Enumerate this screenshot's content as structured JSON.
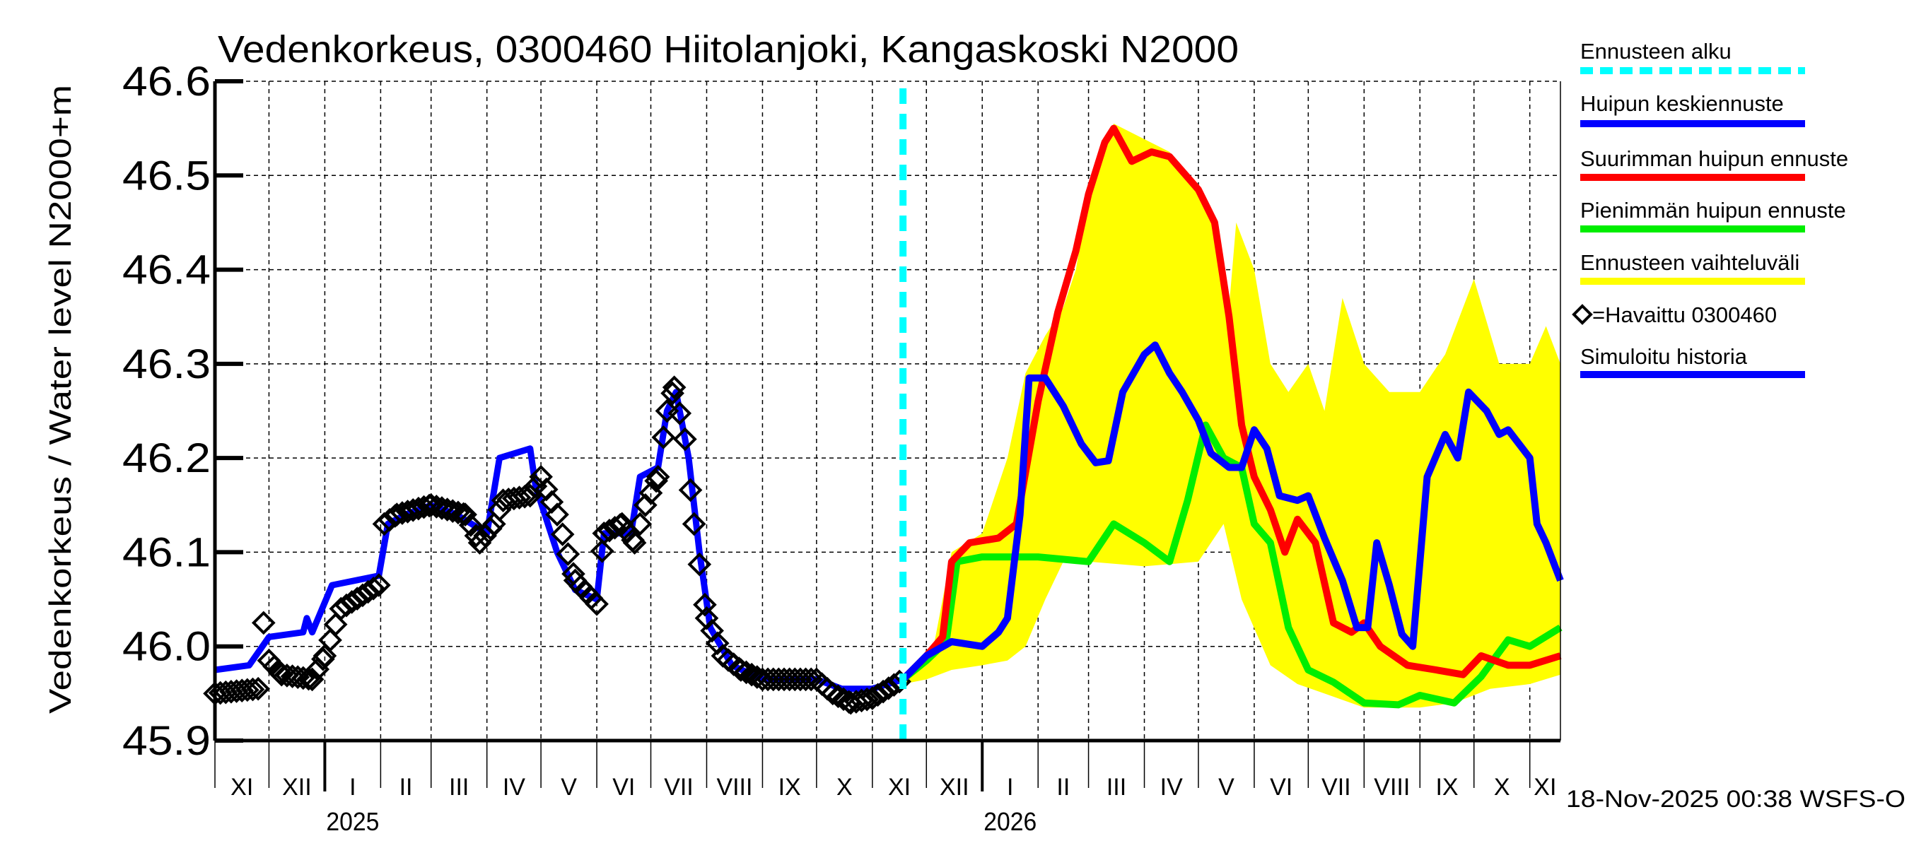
{
  "chart_data": {
    "type": "line",
    "title": "Vedenkorkeus, 0300460 Hiitolanjoki, Kangaskoski N2000",
    "ylabel": "Vedenkorkeus / Water level    N2000+m",
    "ylim": [
      45.9,
      46.6
    ],
    "yticks": [
      "45.9",
      "46.0",
      "46.1",
      "46.2",
      "46.3",
      "46.4",
      "46.5",
      "46.6"
    ],
    "xlim": [
      "2024-11-01",
      "2026-11-18"
    ],
    "month_labels": [
      "XI",
      "XII",
      "I",
      "II",
      "III",
      "IV",
      "V",
      "VI",
      "VII",
      "VIII",
      "IX",
      "X",
      "XI",
      "XII",
      "I",
      "II",
      "III",
      "IV",
      "V",
      "VI",
      "VII",
      "VIII",
      "IX",
      "X",
      "XI"
    ],
    "year_labels": [
      "2025",
      "2026"
    ],
    "grid": true,
    "legend_placement": "right-outside",
    "timestamp": "18-Nov-2025 00:38 WSFS-O",
    "forecast_start": "2025-11-18",
    "colors": {
      "forecast_start": "#00ffff",
      "median": "#0000ff",
      "max": "#ff0000",
      "min": "#00ee00",
      "range": "#ffff00",
      "observed": "#000000",
      "simulated": "#0000ff"
    },
    "legend": [
      {
        "key": "forecast_start",
        "label": "Ennusteen alku"
      },
      {
        "key": "median",
        "label": "Huipun keskiennuste"
      },
      {
        "key": "max",
        "label": "Suurimman huipun ennuste"
      },
      {
        "key": "min",
        "label": "Pienimmän huipun ennuste"
      },
      {
        "key": "range",
        "label": "Ennusteen vaihteluväli"
      },
      {
        "key": "observed",
        "label": "=Havaittu 0300460"
      },
      {
        "key": "simulated",
        "label": "Simuloitu historia"
      }
    ],
    "series": {
      "simulated": [
        [
          "2024-11-01",
          45.975
        ],
        [
          "2024-11-20",
          45.98
        ],
        [
          "2024-12-01",
          46.01
        ],
        [
          "2024-12-20",
          46.015
        ],
        [
          "2024-12-22",
          46.03
        ],
        [
          "2024-12-25",
          46.015
        ],
        [
          "2025-01-05",
          46.065
        ],
        [
          "2025-01-31",
          46.075
        ],
        [
          "2025-02-05",
          46.13
        ],
        [
          "2025-02-15",
          46.14
        ],
        [
          "2025-03-01",
          46.15
        ],
        [
          "2025-03-15",
          46.14
        ],
        [
          "2025-04-01",
          46.12
        ],
        [
          "2025-04-08",
          46.2
        ],
        [
          "2025-04-25",
          46.21
        ],
        [
          "2025-04-28",
          46.17
        ],
        [
          "2025-05-10",
          46.1
        ],
        [
          "2025-05-20",
          46.06
        ],
        [
          "2025-06-01",
          46.05
        ],
        [
          "2025-06-05",
          46.12
        ],
        [
          "2025-06-20",
          46.12
        ],
        [
          "2025-06-25",
          46.18
        ],
        [
          "2025-07-05",
          46.19
        ],
        [
          "2025-07-10",
          46.25
        ],
        [
          "2025-07-15",
          46.27
        ],
        [
          "2025-07-22",
          46.2
        ],
        [
          "2025-07-28",
          46.1
        ],
        [
          "2025-08-03",
          46.02
        ],
        [
          "2025-08-15",
          45.98
        ],
        [
          "2025-09-01",
          45.965
        ],
        [
          "2025-10-01",
          45.965
        ],
        [
          "2025-10-15",
          45.955
        ],
        [
          "2025-11-01",
          45.955
        ],
        [
          "2025-11-18",
          45.965
        ]
      ],
      "observed": [
        [
          "2024-11-01",
          45.95
        ],
        [
          "2024-11-25",
          45.955
        ],
        [
          "2024-11-28",
          46.025
        ],
        [
          "2024-12-01",
          45.985
        ],
        [
          "2024-12-08",
          45.97
        ],
        [
          "2024-12-25",
          45.965
        ],
        [
          "2025-01-01",
          45.99
        ],
        [
          "2025-01-10",
          46.04
        ],
        [
          "2025-01-31",
          46.065
        ],
        [
          "2025-02-03",
          46.13
        ],
        [
          "2025-02-10",
          46.14
        ],
        [
          "2025-03-01",
          46.15
        ],
        [
          "2025-03-20",
          46.14
        ],
        [
          "2025-03-28",
          46.11
        ],
        [
          "2025-04-05",
          46.13
        ],
        [
          "2025-04-10",
          46.155
        ],
        [
          "2025-04-25",
          46.16
        ],
        [
          "2025-05-01",
          46.18
        ],
        [
          "2025-05-10",
          46.14
        ],
        [
          "2025-05-20",
          46.07
        ],
        [
          "2025-06-01",
          46.045
        ],
        [
          "2025-06-05",
          46.12
        ],
        [
          "2025-06-15",
          46.13
        ],
        [
          "2025-06-22",
          46.11
        ],
        [
          "2025-06-28",
          46.15
        ],
        [
          "2025-07-05",
          46.18
        ],
        [
          "2025-07-10",
          46.25
        ],
        [
          "2025-07-14",
          46.275
        ],
        [
          "2025-07-20",
          46.22
        ],
        [
          "2025-07-25",
          46.13
        ],
        [
          "2025-08-01",
          46.03
        ],
        [
          "2025-08-10",
          45.99
        ],
        [
          "2025-08-20",
          45.975
        ],
        [
          "2025-09-01",
          45.965
        ],
        [
          "2025-10-01",
          45.965
        ],
        [
          "2025-10-10",
          45.95
        ],
        [
          "2025-10-20",
          45.94
        ],
        [
          "2025-11-01",
          45.945
        ],
        [
          "2025-11-18",
          45.965
        ]
      ],
      "median": [
        [
          "2025-11-18",
          45.965
        ],
        [
          "2025-12-01",
          45.99
        ],
        [
          "2025-12-15",
          46.005
        ],
        [
          "2026-01-01",
          46.0
        ],
        [
          "2026-01-10",
          46.015
        ],
        [
          "2026-01-15",
          46.03
        ],
        [
          "2026-01-22",
          46.14
        ],
        [
          "2026-01-27",
          46.285
        ],
        [
          "2026-02-05",
          46.285
        ],
        [
          "2026-02-15",
          46.255
        ],
        [
          "2026-02-25",
          46.215
        ],
        [
          "2026-03-05",
          46.195
        ],
        [
          "2026-03-12",
          46.197
        ],
        [
          "2026-03-20",
          46.27
        ],
        [
          "2026-04-01",
          46.31
        ],
        [
          "2026-04-07",
          46.32
        ],
        [
          "2026-04-15",
          46.29
        ],
        [
          "2026-04-22",
          46.27
        ],
        [
          "2026-05-01",
          46.24
        ],
        [
          "2026-05-08",
          46.205
        ],
        [
          "2026-05-18",
          46.19
        ],
        [
          "2026-05-25",
          46.19
        ],
        [
          "2026-06-01",
          46.23
        ],
        [
          "2026-06-08",
          46.21
        ],
        [
          "2026-06-15",
          46.16
        ],
        [
          "2026-06-25",
          46.155
        ],
        [
          "2026-07-01",
          46.16
        ],
        [
          "2026-07-10",
          46.115
        ],
        [
          "2026-07-20",
          46.07
        ],
        [
          "2026-07-28",
          46.02
        ],
        [
          "2026-08-03",
          46.02
        ],
        [
          "2026-08-08",
          46.11
        ],
        [
          "2026-08-15",
          46.065
        ],
        [
          "2026-08-22",
          46.013
        ],
        [
          "2026-08-28",
          46.0
        ],
        [
          "2026-09-05",
          46.18
        ],
        [
          "2026-09-15",
          46.225
        ],
        [
          "2026-09-22",
          46.2
        ],
        [
          "2026-09-28",
          46.27
        ],
        [
          "2026-10-08",
          46.25
        ],
        [
          "2026-10-15",
          46.225
        ],
        [
          "2026-10-20",
          46.23
        ],
        [
          "2026-11-01",
          46.2
        ],
        [
          "2026-11-05",
          46.13
        ],
        [
          "2026-11-10",
          46.11
        ],
        [
          "2026-11-18",
          46.07
        ]
      ],
      "max": [
        [
          "2025-11-18",
          45.965
        ],
        [
          "2025-12-01",
          45.99
        ],
        [
          "2025-12-10",
          46.01
        ],
        [
          "2025-12-15",
          46.09
        ],
        [
          "2025-12-25",
          46.11
        ],
        [
          "2026-01-10",
          46.115
        ],
        [
          "2026-01-20",
          46.13
        ],
        [
          "2026-02-01",
          46.26
        ],
        [
          "2026-02-12",
          46.355
        ],
        [
          "2026-02-22",
          46.42
        ],
        [
          "2026-03-01",
          46.48
        ],
        [
          "2026-03-10",
          46.535
        ],
        [
          "2026-03-15",
          46.55
        ],
        [
          "2026-03-25",
          46.515
        ],
        [
          "2026-04-05",
          46.525
        ],
        [
          "2026-04-15",
          46.52
        ],
        [
          "2026-05-01",
          46.485
        ],
        [
          "2026-05-10",
          46.45
        ],
        [
          "2026-05-18",
          46.35
        ],
        [
          "2026-05-25",
          46.235
        ],
        [
          "2026-06-01",
          46.18
        ],
        [
          "2026-06-10",
          46.145
        ],
        [
          "2026-06-18",
          46.1
        ],
        [
          "2026-06-25",
          46.135
        ],
        [
          "2026-07-05",
          46.11
        ],
        [
          "2026-07-15",
          46.025
        ],
        [
          "2026-07-25",
          46.015
        ],
        [
          "2026-08-01",
          46.025
        ],
        [
          "2026-08-10",
          46.0
        ],
        [
          "2026-08-25",
          45.98
        ],
        [
          "2026-09-10",
          45.975
        ],
        [
          "2026-09-25",
          45.97
        ],
        [
          "2026-10-05",
          45.99
        ],
        [
          "2026-10-20",
          45.98
        ],
        [
          "2026-11-01",
          45.98
        ],
        [
          "2026-11-18",
          45.99
        ]
      ],
      "min": [
        [
          "2025-11-18",
          45.965
        ],
        [
          "2025-12-01",
          45.985
        ],
        [
          "2025-12-12",
          46.005
        ],
        [
          "2025-12-18",
          46.09
        ],
        [
          "2026-01-01",
          46.095
        ],
        [
          "2026-02-01",
          46.095
        ],
        [
          "2026-03-01",
          46.09
        ],
        [
          "2026-03-15",
          46.13
        ],
        [
          "2026-04-01",
          46.11
        ],
        [
          "2026-04-15",
          46.09
        ],
        [
          "2026-04-25",
          46.155
        ],
        [
          "2026-05-05",
          46.235
        ],
        [
          "2026-05-15",
          46.2
        ],
        [
          "2026-05-25",
          46.19
        ],
        [
          "2026-06-01",
          46.13
        ],
        [
          "2026-06-10",
          46.11
        ],
        [
          "2026-06-20",
          46.02
        ],
        [
          "2026-07-01",
          45.975
        ],
        [
          "2026-07-15",
          45.962
        ],
        [
          "2026-08-01",
          45.94
        ],
        [
          "2026-08-20",
          45.938
        ],
        [
          "2026-09-01",
          45.948
        ],
        [
          "2026-09-20",
          45.94
        ],
        [
          "2026-10-05",
          45.968
        ],
        [
          "2026-10-20",
          46.007
        ],
        [
          "2026-11-01",
          46.0
        ],
        [
          "2026-11-18",
          46.02
        ]
      ],
      "range_upper": [
        [
          "2025-11-18",
          45.97
        ],
        [
          "2025-12-05",
          46.0
        ],
        [
          "2025-12-15",
          46.1
        ],
        [
          "2026-01-01",
          46.12
        ],
        [
          "2026-01-15",
          46.2
        ],
        [
          "2026-01-25",
          46.29
        ],
        [
          "2026-02-05",
          46.33
        ],
        [
          "2026-02-15",
          46.36
        ],
        [
          "2026-02-22",
          46.4
        ],
        [
          "2026-03-01",
          46.48
        ],
        [
          "2026-03-15",
          46.555
        ],
        [
          "2026-04-15",
          46.525
        ],
        [
          "2026-05-10",
          46.455
        ],
        [
          "2026-05-18",
          46.36
        ],
        [
          "2026-05-22",
          46.45
        ],
        [
          "2026-06-01",
          46.4
        ],
        [
          "2026-06-10",
          46.3
        ],
        [
          "2026-06-20",
          46.27
        ],
        [
          "2026-07-01",
          46.3
        ],
        [
          "2026-07-10",
          46.25
        ],
        [
          "2026-07-20",
          46.37
        ],
        [
          "2026-08-01",
          46.3
        ],
        [
          "2026-08-15",
          46.27
        ],
        [
          "2026-09-01",
          46.27
        ],
        [
          "2026-09-15",
          46.31
        ],
        [
          "2026-10-01",
          46.39
        ],
        [
          "2026-10-15",
          46.3
        ],
        [
          "2026-11-01",
          46.3
        ],
        [
          "2026-11-10",
          46.34
        ],
        [
          "2026-11-18",
          46.3
        ]
      ],
      "range_lower": [
        [
          "2025-11-18",
          45.96
        ],
        [
          "2025-12-01",
          45.965
        ],
        [
          "2025-12-15",
          45.975
        ],
        [
          "2026-01-01",
          45.98
        ],
        [
          "2026-01-15",
          45.985
        ],
        [
          "2026-01-25",
          46.0
        ],
        [
          "2026-02-05",
          46.05
        ],
        [
          "2026-02-15",
          46.09
        ],
        [
          "2026-03-01",
          46.09
        ],
        [
          "2026-04-01",
          46.085
        ],
        [
          "2026-05-01",
          46.09
        ],
        [
          "2026-05-15",
          46.13
        ],
        [
          "2026-05-25",
          46.05
        ],
        [
          "2026-06-10",
          45.98
        ],
        [
          "2026-06-25",
          45.96
        ],
        [
          "2026-07-10",
          45.95
        ],
        [
          "2026-08-01",
          45.935
        ],
        [
          "2026-09-01",
          45.935
        ],
        [
          "2026-09-20",
          45.94
        ],
        [
          "2026-10-10",
          45.955
        ],
        [
          "2026-11-01",
          45.96
        ],
        [
          "2026-11-18",
          45.97
        ]
      ]
    }
  }
}
